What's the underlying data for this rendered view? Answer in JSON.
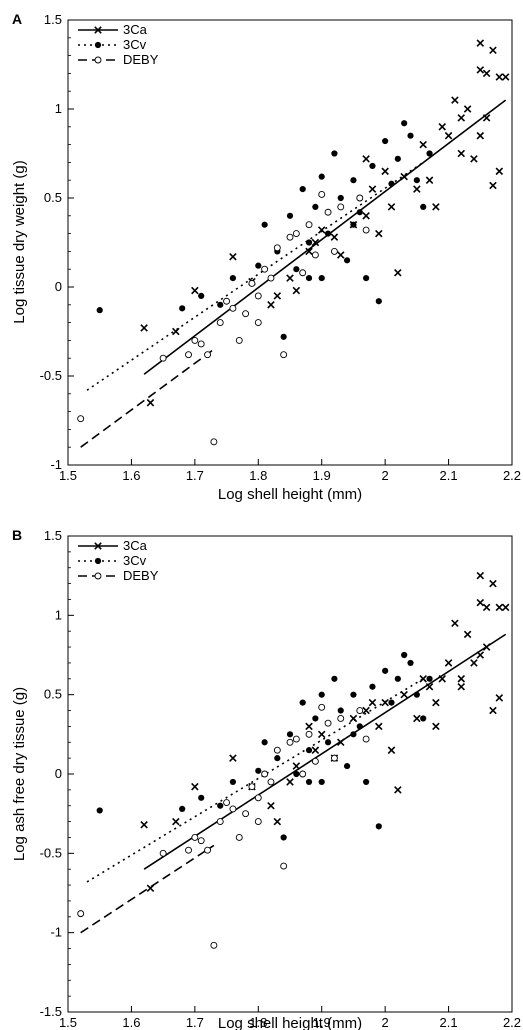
{
  "chart_data": [
    {
      "type": "scatter",
      "panel_label": "A",
      "xlabel": "Log shell height (mm)",
      "ylabel": "Log tissue dry weight (g)",
      "xlim": [
        1.5,
        2.2
      ],
      "ylim": [
        -1,
        1.5
      ],
      "xticks": [
        1.5,
        1.6,
        1.7,
        1.8,
        1.9,
        2.0,
        2.1,
        2.2
      ],
      "xtick_labels": [
        "1.5",
        "1.6",
        "1.7",
        "1.8",
        "1.9",
        "2",
        "2.1",
        "2.2"
      ],
      "yticks": [
        -1,
        -0.5,
        0,
        0.5,
        1,
        1.5
      ],
      "ytick_labels": [
        "-1",
        "-0.5",
        "0",
        "0.5",
        "1",
        "1.5"
      ],
      "legend_position": "top-left",
      "grid": false,
      "series": [
        {
          "name": "3Ca",
          "marker": "cross",
          "line": "solid",
          "fit": [
            [
              1.62,
              -0.49
            ],
            [
              2.19,
              1.05
            ]
          ],
          "points": [
            [
              1.62,
              -0.23
            ],
            [
              1.63,
              -0.65
            ],
            [
              1.67,
              -0.25
            ],
            [
              1.7,
              -0.02
            ],
            [
              1.76,
              0.17
            ],
            [
              1.79,
              0.03
            ],
            [
              1.82,
              -0.1
            ],
            [
              1.83,
              -0.05
            ],
            [
              1.85,
              0.05
            ],
            [
              1.86,
              -0.02
            ],
            [
              1.88,
              0.2
            ],
            [
              1.89,
              0.25
            ],
            [
              1.9,
              0.32
            ],
            [
              1.92,
              0.28
            ],
            [
              1.93,
              0.18
            ],
            [
              1.95,
              0.35
            ],
            [
              1.97,
              0.4
            ],
            [
              1.98,
              0.55
            ],
            [
              1.99,
              0.3
            ],
            [
              2.0,
              0.65
            ],
            [
              2.01,
              0.45
            ],
            [
              2.02,
              0.08
            ],
            [
              2.03,
              0.62
            ],
            [
              2.05,
              0.55
            ],
            [
              2.06,
              0.8
            ],
            [
              2.07,
              0.6
            ],
            [
              2.08,
              0.45
            ],
            [
              2.09,
              0.9
            ],
            [
              2.1,
              0.85
            ],
            [
              2.11,
              1.05
            ],
            [
              2.12,
              0.75
            ],
            [
              2.13,
              1.0
            ],
            [
              2.14,
              0.72
            ],
            [
              2.15,
              1.22
            ],
            [
              2.15,
              1.37
            ],
            [
              2.16,
              1.2
            ],
            [
              2.16,
              0.95
            ],
            [
              2.17,
              1.33
            ],
            [
              2.17,
              0.57
            ],
            [
              2.18,
              1.18
            ],
            [
              2.18,
              0.65
            ],
            [
              2.15,
              0.85
            ],
            [
              2.19,
              1.18
            ],
            [
              2.12,
              0.95
            ],
            [
              1.97,
              0.72
            ]
          ]
        },
        {
          "name": "3Cv",
          "marker": "filled-circle",
          "line": "dotted",
          "fit": [
            [
              1.53,
              -0.58
            ],
            [
              2.06,
              0.7
            ]
          ],
          "points": [
            [
              1.55,
              -0.13
            ],
            [
              1.68,
              -0.12
            ],
            [
              1.71,
              -0.05
            ],
            [
              1.74,
              -0.1
            ],
            [
              1.76,
              0.05
            ],
            [
              1.78,
              -0.15
            ],
            [
              1.8,
              0.12
            ],
            [
              1.81,
              0.35
            ],
            [
              1.83,
              0.2
            ],
            [
              1.84,
              -0.28
            ],
            [
              1.85,
              0.4
            ],
            [
              1.86,
              0.1
            ],
            [
              1.87,
              0.55
            ],
            [
              1.88,
              0.05
            ],
            [
              1.89,
              0.45
            ],
            [
              1.9,
              0.62
            ],
            [
              1.91,
              0.3
            ],
            [
              1.92,
              0.75
            ],
            [
              1.93,
              0.5
            ],
            [
              1.94,
              0.15
            ],
            [
              1.95,
              0.6
            ],
            [
              1.96,
              0.42
            ],
            [
              1.97,
              0.05
            ],
            [
              1.98,
              0.68
            ],
            [
              1.99,
              -0.08
            ],
            [
              2.0,
              0.82
            ],
            [
              2.01,
              0.58
            ],
            [
              2.02,
              0.72
            ],
            [
              2.03,
              0.92
            ],
            [
              2.04,
              0.85
            ],
            [
              2.05,
              0.6
            ],
            [
              2.06,
              0.45
            ],
            [
              2.07,
              0.75
            ],
            [
              1.95,
              0.35
            ],
            [
              1.9,
              0.05
            ],
            [
              1.88,
              0.25
            ]
          ]
        },
        {
          "name": "DEBY",
          "marker": "open-circle",
          "line": "dashed",
          "fit": [
            [
              1.52,
              -0.9
            ],
            [
              1.73,
              -0.35
            ]
          ],
          "points": [
            [
              1.52,
              -0.74
            ],
            [
              1.65,
              -0.4
            ],
            [
              1.69,
              -0.38
            ],
            [
              1.7,
              -0.3
            ],
            [
              1.71,
              -0.32
            ],
            [
              1.72,
              -0.38
            ],
            [
              1.73,
              -0.87
            ],
            [
              1.74,
              -0.2
            ],
            [
              1.75,
              -0.08
            ],
            [
              1.76,
              -0.12
            ],
            [
              1.77,
              -0.3
            ],
            [
              1.78,
              -0.15
            ],
            [
              1.79,
              0.02
            ],
            [
              1.8,
              -0.2
            ],
            [
              1.81,
              0.1
            ],
            [
              1.82,
              0.05
            ],
            [
              1.83,
              0.22
            ],
            [
              1.84,
              -0.38
            ],
            [
              1.85,
              0.28
            ],
            [
              1.86,
              0.3
            ],
            [
              1.87,
              0.08
            ],
            [
              1.88,
              0.35
            ],
            [
              1.89,
              0.18
            ],
            [
              1.9,
              0.52
            ],
            [
              1.91,
              0.42
            ],
            [
              1.92,
              0.2
            ],
            [
              1.93,
              0.45
            ],
            [
              1.96,
              0.5
            ],
            [
              1.97,
              0.32
            ],
            [
              1.8,
              -0.05
            ]
          ]
        }
      ]
    },
    {
      "type": "scatter",
      "panel_label": "B",
      "xlabel": "Log shell height (mm)",
      "ylabel": "Log ash free dry tissue (g)",
      "xlim": [
        1.5,
        2.2
      ],
      "ylim": [
        -1.5,
        1.5
      ],
      "xticks": [
        1.5,
        1.6,
        1.7,
        1.8,
        1.9,
        2.0,
        2.1,
        2.2
      ],
      "xtick_labels": [
        "1.5",
        "1.6",
        "1.7",
        "1.8",
        "1.9",
        "2",
        "2.1",
        "2.2"
      ],
      "yticks": [
        -1.5,
        -1,
        -0.5,
        0,
        0.5,
        1,
        1.5
      ],
      "ytick_labels": [
        "-1.5",
        "-1",
        "-0.5",
        "0",
        "0.5",
        "1",
        "1.5"
      ],
      "legend_position": "top-left",
      "grid": false,
      "series": [
        {
          "name": "3Ca",
          "marker": "cross",
          "line": "solid",
          "fit": [
            [
              1.62,
              -0.6
            ],
            [
              2.19,
              0.88
            ]
          ],
          "points": [
            [
              1.62,
              -0.32
            ],
            [
              1.63,
              -0.72
            ],
            [
              1.67,
              -0.3
            ],
            [
              1.7,
              -0.08
            ],
            [
              1.76,
              0.1
            ],
            [
              1.79,
              -0.08
            ],
            [
              1.82,
              -0.2
            ],
            [
              1.83,
              -0.3
            ],
            [
              1.85,
              -0.05
            ],
            [
              1.86,
              0.05
            ],
            [
              1.88,
              0.3
            ],
            [
              1.89,
              0.15
            ],
            [
              1.9,
              0.25
            ],
            [
              1.92,
              0.1
            ],
            [
              1.93,
              0.2
            ],
            [
              1.95,
              0.35
            ],
            [
              1.97,
              0.4
            ],
            [
              1.98,
              0.45
            ],
            [
              1.99,
              0.3
            ],
            [
              2.0,
              0.45
            ],
            [
              2.01,
              0.15
            ],
            [
              2.02,
              -0.1
            ],
            [
              2.03,
              0.5
            ],
            [
              2.05,
              0.35
            ],
            [
              2.06,
              0.6
            ],
            [
              2.07,
              0.55
            ],
            [
              2.08,
              0.45
            ],
            [
              2.09,
              0.6
            ],
            [
              2.1,
              0.7
            ],
            [
              2.11,
              0.95
            ],
            [
              2.12,
              0.6
            ],
            [
              2.13,
              0.88
            ],
            [
              2.14,
              0.7
            ],
            [
              2.15,
              1.25
            ],
            [
              2.15,
              1.08
            ],
            [
              2.16,
              1.05
            ],
            [
              2.16,
              0.8
            ],
            [
              2.17,
              1.2
            ],
            [
              2.17,
              0.4
            ],
            [
              2.18,
              1.05
            ],
            [
              2.18,
              0.48
            ],
            [
              2.15,
              0.75
            ],
            [
              2.19,
              1.05
            ],
            [
              2.12,
              0.55
            ],
            [
              2.08,
              0.3
            ]
          ]
        },
        {
          "name": "3Cv",
          "marker": "filled-circle",
          "line": "dotted",
          "fit": [
            [
              1.53,
              -0.68
            ],
            [
              2.06,
              0.6
            ]
          ],
          "points": [
            [
              1.55,
              -0.23
            ],
            [
              1.68,
              -0.22
            ],
            [
              1.71,
              -0.15
            ],
            [
              1.74,
              -0.2
            ],
            [
              1.76,
              -0.05
            ],
            [
              1.78,
              -0.25
            ],
            [
              1.8,
              0.02
            ],
            [
              1.81,
              0.2
            ],
            [
              1.83,
              0.1
            ],
            [
              1.84,
              -0.4
            ],
            [
              1.85,
              0.25
            ],
            [
              1.86,
              0.0
            ],
            [
              1.87,
              0.45
            ],
            [
              1.88,
              -0.05
            ],
            [
              1.89,
              0.35
            ],
            [
              1.9,
              0.5
            ],
            [
              1.91,
              0.2
            ],
            [
              1.92,
              0.6
            ],
            [
              1.93,
              0.4
            ],
            [
              1.94,
              0.05
            ],
            [
              1.95,
              0.5
            ],
            [
              1.96,
              0.3
            ],
            [
              1.97,
              -0.05
            ],
            [
              1.98,
              0.55
            ],
            [
              1.99,
              -0.33
            ],
            [
              2.0,
              0.65
            ],
            [
              2.01,
              0.45
            ],
            [
              2.02,
              0.6
            ],
            [
              2.03,
              0.75
            ],
            [
              2.04,
              0.7
            ],
            [
              2.05,
              0.5
            ],
            [
              2.06,
              0.35
            ],
            [
              2.07,
              0.6
            ],
            [
              1.95,
              0.25
            ],
            [
              1.9,
              -0.05
            ],
            [
              1.88,
              0.15
            ]
          ]
        },
        {
          "name": "DEBY",
          "marker": "open-circle",
          "line": "dashed",
          "fit": [
            [
              1.52,
              -1.0
            ],
            [
              1.73,
              -0.45
            ]
          ],
          "points": [
            [
              1.52,
              -0.88
            ],
            [
              1.65,
              -0.5
            ],
            [
              1.69,
              -0.48
            ],
            [
              1.7,
              -0.4
            ],
            [
              1.71,
              -0.42
            ],
            [
              1.72,
              -0.48
            ],
            [
              1.73,
              -1.08
            ],
            [
              1.74,
              -0.3
            ],
            [
              1.75,
              -0.18
            ],
            [
              1.76,
              -0.22
            ],
            [
              1.77,
              -0.4
            ],
            [
              1.78,
              -0.25
            ],
            [
              1.79,
              -0.08
            ],
            [
              1.8,
              -0.3
            ],
            [
              1.81,
              0.0
            ],
            [
              1.82,
              -0.05
            ],
            [
              1.83,
              0.15
            ],
            [
              1.84,
              -0.58
            ],
            [
              1.85,
              0.2
            ],
            [
              1.86,
              0.22
            ],
            [
              1.87,
              0.0
            ],
            [
              1.88,
              0.25
            ],
            [
              1.89,
              0.08
            ],
            [
              1.9,
              0.42
            ],
            [
              1.91,
              0.32
            ],
            [
              1.92,
              0.1
            ],
            [
              1.93,
              0.35
            ],
            [
              1.96,
              0.4
            ],
            [
              1.97,
              0.22
            ],
            [
              1.8,
              -0.15
            ]
          ]
        }
      ]
    }
  ]
}
